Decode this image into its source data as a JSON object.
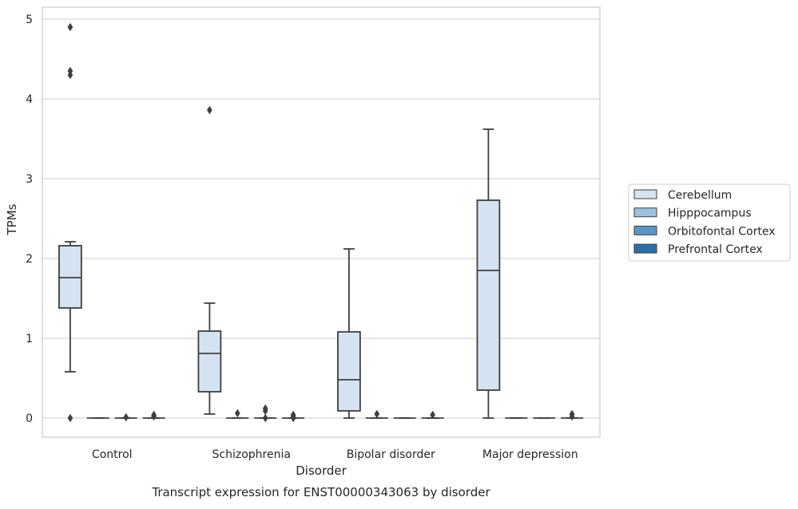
{
  "chart_data": {
    "type": "box",
    "caption": "Transcript expression for ENST00000343063 by disorder",
    "xlabel": "Disorder",
    "ylabel": "TPMs",
    "ylim": [
      -0.24,
      5.15
    ],
    "yticks": [
      "0",
      "1",
      "2",
      "3",
      "4",
      "5"
    ],
    "grid": true,
    "legend_position": "right",
    "categories": [
      "Control",
      "Schizophrenia",
      "Bipolar disorder",
      "Major depression"
    ],
    "series": [
      {
        "name": "Cerebellum",
        "color": "#d4e3f1",
        "boxes": [
          {
            "whislo": 0.58,
            "q1": 1.38,
            "med": 1.76,
            "q3": 2.16,
            "whishi": 2.21,
            "fliers": [
              0.0,
              4.3,
              4.35,
              4.9
            ]
          },
          {
            "whislo": 0.05,
            "q1": 0.33,
            "med": 0.81,
            "q3": 1.09,
            "whishi": 1.44,
            "fliers": [
              3.86
            ]
          },
          {
            "whislo": 0.0,
            "q1": 0.09,
            "med": 0.48,
            "q3": 1.08,
            "whishi": 2.12,
            "fliers": []
          },
          {
            "whislo": 0.0,
            "q1": 0.35,
            "med": 1.85,
            "q3": 2.73,
            "whishi": 3.62,
            "fliers": []
          }
        ]
      },
      {
        "name": "Hipppocampus",
        "color": "#9ac2e0",
        "boxes": [
          {
            "whislo": 0.0,
            "q1": 0.0,
            "med": 0.0,
            "q3": 0.0,
            "whishi": 0.0,
            "fliers": []
          },
          {
            "whislo": 0.0,
            "q1": 0.0,
            "med": 0.0,
            "q3": 0.0,
            "whishi": 0.0,
            "fliers": [
              0.06
            ]
          },
          {
            "whislo": 0.0,
            "q1": 0.0,
            "med": 0.0,
            "q3": 0.0,
            "whishi": 0.0,
            "fliers": [
              0.05
            ]
          },
          {
            "whislo": 0.0,
            "q1": 0.0,
            "med": 0.0,
            "q3": 0.0,
            "whishi": 0.0,
            "fliers": []
          }
        ]
      },
      {
        "name": "Orbitofontal Cortex",
        "color": "#5a95c5",
        "boxes": [
          {
            "whislo": 0.0,
            "q1": 0.0,
            "med": 0.0,
            "q3": 0.0,
            "whishi": 0.0,
            "fliers": [
              0.01
            ]
          },
          {
            "whislo": 0.0,
            "q1": 0.0,
            "med": 0.0,
            "q3": 0.0,
            "whishi": 0.0,
            "fliers": [
              0.0,
              0.09,
              0.12
            ]
          },
          {
            "whislo": 0.0,
            "q1": 0.0,
            "med": 0.0,
            "q3": 0.0,
            "whishi": 0.0,
            "fliers": []
          },
          {
            "whislo": 0.0,
            "q1": 0.0,
            "med": 0.0,
            "q3": 0.0,
            "whishi": 0.0,
            "fliers": []
          }
        ]
      },
      {
        "name": "Prefrontal Cortex",
        "color": "#2c6ea9",
        "boxes": [
          {
            "whislo": 0.0,
            "q1": 0.0,
            "med": 0.0,
            "q3": 0.0,
            "whishi": 0.0,
            "fliers": [
              0.02,
              0.04
            ]
          },
          {
            "whislo": 0.0,
            "q1": 0.0,
            "med": 0.0,
            "q3": 0.0,
            "whishi": 0.0,
            "fliers": [
              0.0,
              0.02,
              0.04
            ]
          },
          {
            "whislo": 0.0,
            "q1": 0.0,
            "med": 0.0,
            "q3": 0.0,
            "whishi": 0.0,
            "fliers": [
              0.04
            ]
          },
          {
            "whislo": 0.0,
            "q1": 0.0,
            "med": 0.0,
            "q3": 0.0,
            "whishi": 0.0,
            "fliers": [
              0.02,
              0.05
            ]
          }
        ]
      }
    ]
  }
}
